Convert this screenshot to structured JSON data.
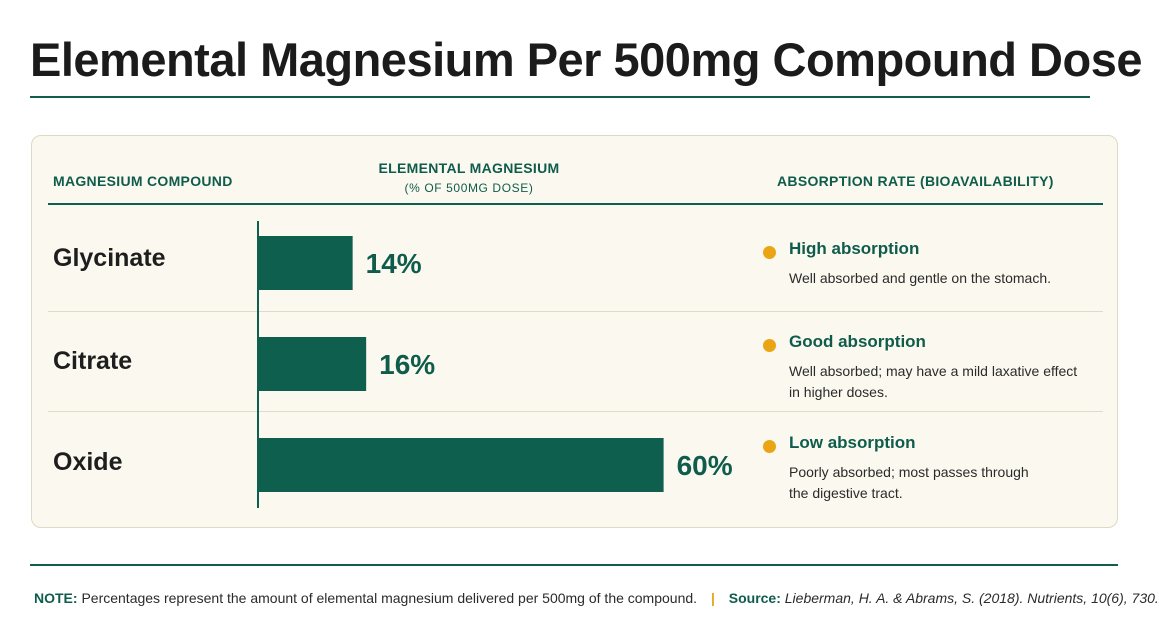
{
  "title": "Elemental Magnesium Per 500mg Compound Dose",
  "headers": {
    "compound": "MAGNESIUM COMPOUND",
    "elemental": "ELEMENTAL MAGNESIUM",
    "elemental_sub": "(% OF 500MG DOSE)",
    "absorption": "ABSORPTION RATE (BIOAVAILABILITY)"
  },
  "colors": {
    "bar": "#0f5f4f",
    "accent_text": "#0f5c4d",
    "dot": "#e9a514",
    "card_bg": "#fbf9ef"
  },
  "chart_data": {
    "type": "bar",
    "orientation": "horizontal",
    "categories": [
      "Glycinate",
      "Citrate",
      "Oxide"
    ],
    "values": [
      14,
      16,
      60
    ],
    "value_labels": [
      "14%",
      "16%",
      "60%"
    ],
    "unit": "%",
    "xlim": [
      0,
      70
    ]
  },
  "rows": [
    {
      "compound": "Glycinate",
      "absorption_level": "High absorption",
      "absorption_desc": "Well absorbed and gentle on the stomach."
    },
    {
      "compound": "Citrate",
      "absorption_level": "Good absorption",
      "absorption_desc": "Well absorbed; may have a mild laxative effect in higher doses."
    },
    {
      "compound": "Oxide",
      "absorption_level": "Low absorption",
      "absorption_desc": "Poorly absorbed; most passes through the digestive tract."
    }
  ],
  "footer": {
    "note_label": "NOTE:",
    "note_text": "Percentages represent the amount of elemental magnesium delivered per 500mg of the compound.",
    "separator": "|",
    "source_label": "Source:",
    "source_text": "Lieberman, H. A. & Abrams, S. (2018). Nutrients, 10(6), 730."
  }
}
